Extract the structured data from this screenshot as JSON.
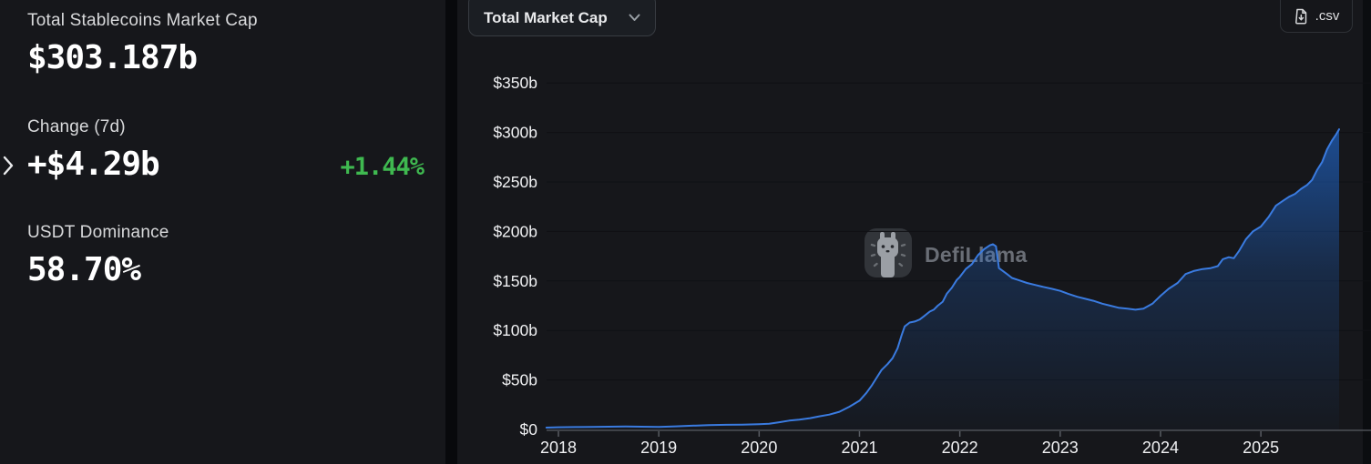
{
  "sidebar": {
    "stats": [
      {
        "label": "Total Stablecoins Market Cap",
        "value": "$303.187b"
      },
      {
        "label": "Change (7d)",
        "value": "+$4.29b",
        "change_pct": "+1.44%"
      },
      {
        "label": "USDT Dominance",
        "value": "58.70%"
      }
    ]
  },
  "toolbar": {
    "metric_dropdown_label": "Total Market Cap",
    "csv_button_label": ".csv"
  },
  "watermark": {
    "text": "DefiLlama"
  },
  "colors": {
    "positive_green": "#3fb950",
    "line_blue": "#3a7be0",
    "area_blue": "#2172e5",
    "grid": "#0f1014",
    "axis": "#585c62",
    "tick_text": "#f0f1f3",
    "panel_bg": "#16171b",
    "page_bg": "#08090c"
  },
  "chart_data": {
    "type": "area",
    "title": "Total Market Cap",
    "xlabel": "",
    "ylabel": "",
    "ylim": [
      0,
      375
    ],
    "grid": true,
    "legend": false,
    "latest_value_billions": 303.187,
    "x_ticks": [
      {
        "year": 2018,
        "label": "2018"
      },
      {
        "year": 2019,
        "label": "2019"
      },
      {
        "year": 2020,
        "label": "2020"
      },
      {
        "year": 2021,
        "label": "2021"
      },
      {
        "year": 2022,
        "label": "2022"
      },
      {
        "year": 2023,
        "label": "2023"
      },
      {
        "year": 2024,
        "label": "2024"
      },
      {
        "year": 2025,
        "label": "2025"
      }
    ],
    "y_ticks": [
      {
        "value": 0,
        "label": "$0"
      },
      {
        "value": 50,
        "label": "$50b"
      },
      {
        "value": 100,
        "label": "$100b"
      },
      {
        "value": 150,
        "label": "$150b"
      },
      {
        "value": 200,
        "label": "$200b"
      },
      {
        "value": 250,
        "label": "$250b"
      },
      {
        "value": 300,
        "label": "$300b"
      },
      {
        "value": 350,
        "label": "$350b"
      }
    ],
    "series": [
      {
        "name": "Total Stablecoins Market Cap ($b)",
        "points": [
          [
            2017.88,
            1.8
          ],
          [
            2018,
            2.2
          ],
          [
            2018.17,
            2.4
          ],
          [
            2018.33,
            2.6
          ],
          [
            2018.5,
            2.8
          ],
          [
            2018.67,
            2.9
          ],
          [
            2018.83,
            2.8
          ],
          [
            2019,
            2.6
          ],
          [
            2019.17,
            3.1
          ],
          [
            2019.33,
            3.8
          ],
          [
            2019.5,
            4.3
          ],
          [
            2019.67,
            4.7
          ],
          [
            2019.83,
            4.9
          ],
          [
            2020,
            5.3
          ],
          [
            2020.1,
            5.7
          ],
          [
            2020.2,
            7.3
          ],
          [
            2020.3,
            8.9
          ],
          [
            2020.4,
            9.9
          ],
          [
            2020.5,
            11.2
          ],
          [
            2020.6,
            13.2
          ],
          [
            2020.7,
            15
          ],
          [
            2020.8,
            17.8
          ],
          [
            2020.9,
            23
          ],
          [
            2021,
            29
          ],
          [
            2021.07,
            37
          ],
          [
            2021.12,
            44
          ],
          [
            2021.17,
            52
          ],
          [
            2021.22,
            60
          ],
          [
            2021.28,
            66
          ],
          [
            2021.33,
            72
          ],
          [
            2021.38,
            82
          ],
          [
            2021.42,
            95
          ],
          [
            2021.45,
            104
          ],
          [
            2021.5,
            108
          ],
          [
            2021.55,
            109
          ],
          [
            2021.6,
            111
          ],
          [
            2021.65,
            115
          ],
          [
            2021.7,
            119
          ],
          [
            2021.74,
            121
          ],
          [
            2021.78,
            125
          ],
          [
            2021.83,
            129
          ],
          [
            2021.87,
            137
          ],
          [
            2021.92,
            143
          ],
          [
            2021.97,
            151
          ],
          [
            2022,
            154
          ],
          [
            2022.06,
            162
          ],
          [
            2022.12,
            167
          ],
          [
            2022.18,
            176
          ],
          [
            2022.24,
            182
          ],
          [
            2022.3,
            186
          ],
          [
            2022.33,
            187
          ],
          [
            2022.36,
            185
          ],
          [
            2022.39,
            163
          ],
          [
            2022.43,
            160
          ],
          [
            2022.47,
            157
          ],
          [
            2022.52,
            153
          ],
          [
            2022.58,
            151
          ],
          [
            2022.67,
            148
          ],
          [
            2022.75,
            146
          ],
          [
            2022.83,
            144
          ],
          [
            2022.92,
            142
          ],
          [
            2023,
            140
          ],
          [
            2023.08,
            137
          ],
          [
            2023.17,
            134
          ],
          [
            2023.25,
            132
          ],
          [
            2023.33,
            130
          ],
          [
            2023.42,
            127
          ],
          [
            2023.5,
            125
          ],
          [
            2023.58,
            123
          ],
          [
            2023.67,
            122
          ],
          [
            2023.75,
            121
          ],
          [
            2023.83,
            122
          ],
          [
            2023.92,
            127
          ],
          [
            2024,
            135
          ],
          [
            2024.08,
            142
          ],
          [
            2024.17,
            148
          ],
          [
            2024.25,
            157
          ],
          [
            2024.33,
            160
          ],
          [
            2024.42,
            162
          ],
          [
            2024.5,
            163
          ],
          [
            2024.57,
            165
          ],
          [
            2024.62,
            172
          ],
          [
            2024.68,
            174
          ],
          [
            2024.73,
            173
          ],
          [
            2024.78,
            180
          ],
          [
            2024.85,
            192
          ],
          [
            2024.92,
            200
          ],
          [
            2025,
            205
          ],
          [
            2025.08,
            215
          ],
          [
            2025.15,
            226
          ],
          [
            2025.22,
            231
          ],
          [
            2025.28,
            235
          ],
          [
            2025.34,
            238
          ],
          [
            2025.4,
            243
          ],
          [
            2025.46,
            247
          ],
          [
            2025.51,
            252
          ],
          [
            2025.56,
            262
          ],
          [
            2025.61,
            270
          ],
          [
            2025.66,
            283
          ],
          [
            2025.71,
            292
          ],
          [
            2025.75,
            298
          ],
          [
            2025.78,
            303.187
          ]
        ]
      }
    ]
  }
}
